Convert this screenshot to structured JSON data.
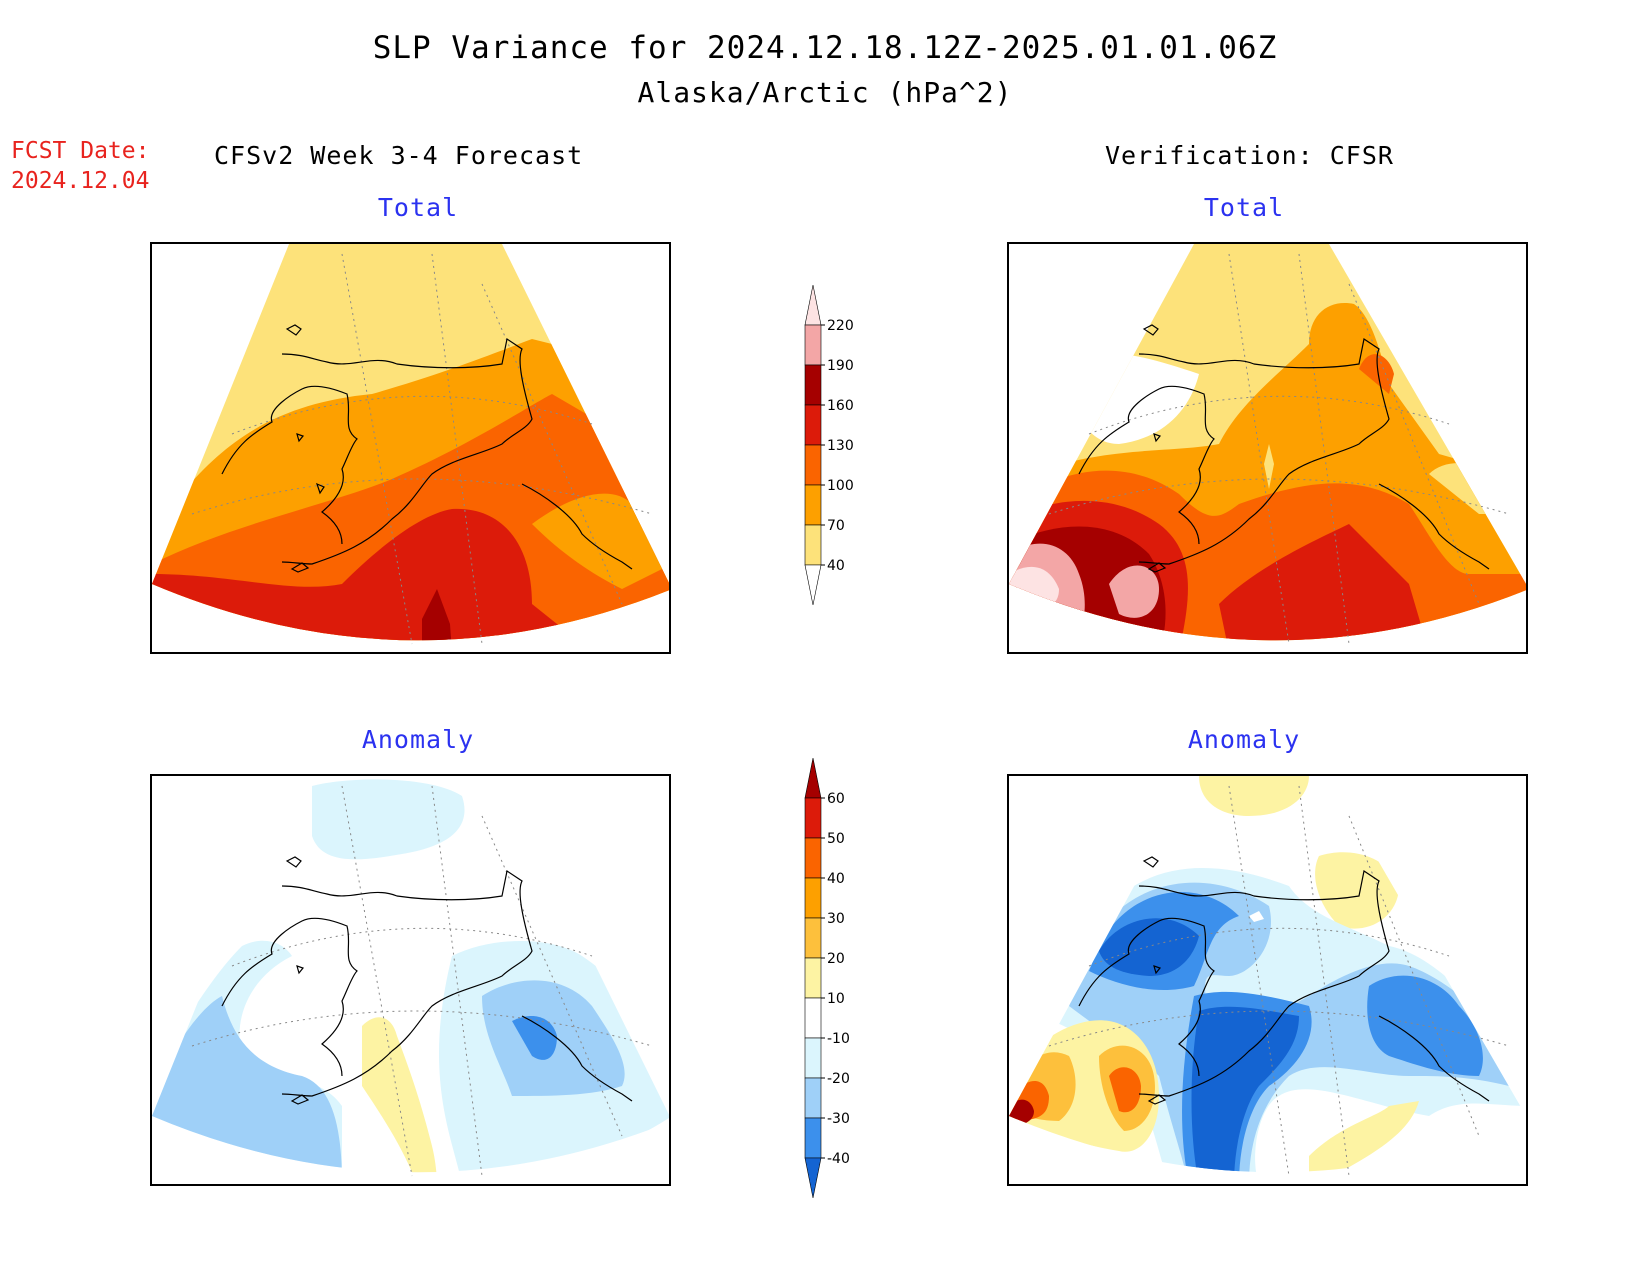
{
  "title": {
    "line1": "SLP Variance for 2024.12.18.12Z-2025.01.01.06Z",
    "line2": "Alaska/Arctic (hPa^2)"
  },
  "fcst": {
    "label": "FCST Date:",
    "date": "2024.12.04"
  },
  "headers": {
    "left": "CFSv2 Week 3-4 Forecast",
    "right": "Verification: CFSR"
  },
  "panels": [
    {
      "title": "Total"
    },
    {
      "title": "Total"
    },
    {
      "title": "Anomaly"
    },
    {
      "title": "Anomaly"
    }
  ],
  "colorbars": {
    "total": {
      "labels": [
        "220",
        "190",
        "160",
        "130",
        "100",
        "70",
        "40"
      ],
      "colors": [
        "#fde3e3",
        "#f3a6a6",
        "#a50000",
        "#dc1b0a",
        "#fa6400",
        "#fda000",
        "#fde27a",
        "#ffffff"
      ]
    },
    "anomaly": {
      "labels": [
        "60",
        "50",
        "40",
        "30",
        "20",
        "10",
        "-10",
        "-20",
        "-30",
        "-40"
      ],
      "colors": [
        "#a50000",
        "#dc1b0a",
        "#fa6400",
        "#fda000",
        "#fdc03c",
        "#fdf3a3",
        "#ffffff",
        "#dbf5fd",
        "#9fd0f8",
        "#3c90ec",
        "#1464d2"
      ]
    }
  },
  "colors": {
    "panel_title": "#2b32f0",
    "fcst_text": "#e8231e"
  }
}
